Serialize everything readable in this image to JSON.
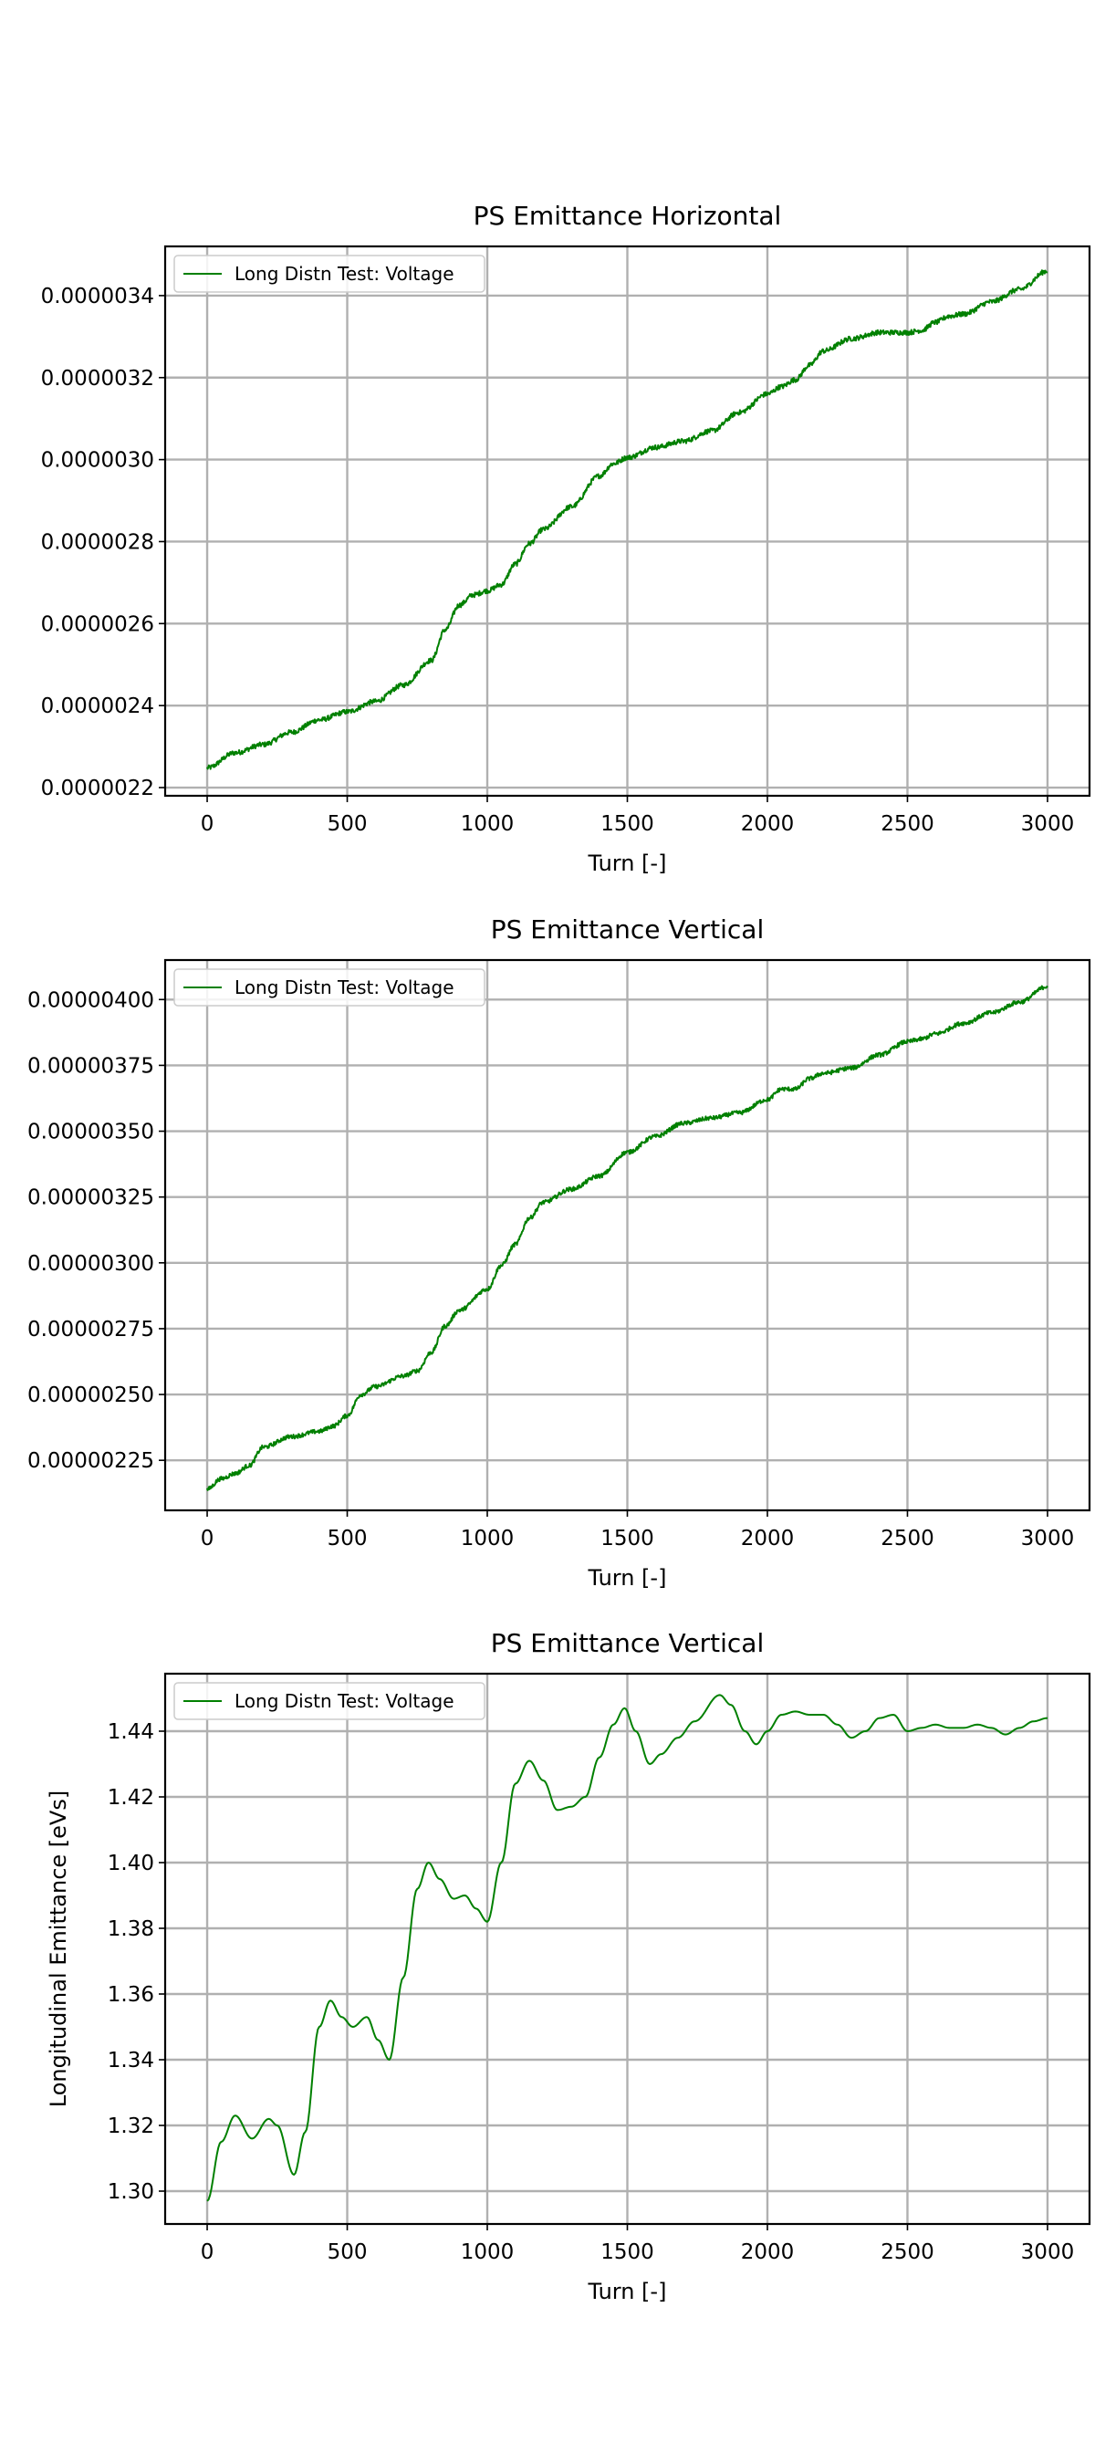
{
  "chart_data": [
    {
      "type": "line",
      "title": "PS Emittance Horizontal",
      "xlabel": "Turn [-]",
      "ylabel": "",
      "xlim": [
        -150,
        3150
      ],
      "ylim": [
        2.18e-06,
        3.52e-06
      ],
      "xticks": [
        0,
        500,
        1000,
        1500,
        2000,
        2500,
        3000
      ],
      "xtick_labels": [
        "0",
        "500",
        "1000",
        "1500",
        "2000",
        "2500",
        "3000"
      ],
      "yticks": [
        2.2e-06,
        2.4e-06,
        2.6e-06,
        2.8e-06,
        3e-06,
        3.2e-06,
        3.4e-06
      ],
      "ytick_labels": [
        "0.0000022",
        "0.0000024",
        "0.0000026",
        "0.0000028",
        "0.0000030",
        "0.0000032",
        "0.0000034"
      ],
      "grid": true,
      "legend_position": "top-left",
      "color": "#008000",
      "noise": 6e-09,
      "series": [
        {
          "name": "Long Distn Test: Voltage",
          "x": [
            0,
            100,
            200,
            300,
            400,
            500,
            600,
            700,
            800,
            850,
            900,
            950,
            1000,
            1050,
            1100,
            1150,
            1200,
            1300,
            1400,
            1450,
            1500,
            1600,
            1700,
            1800,
            1900,
            2000,
            2050,
            2100,
            2150,
            2200,
            2300,
            2400,
            2500,
            2550,
            2600,
            2650,
            2700,
            2800,
            2900,
            3000
          ],
          "y": [
            2.248e-06,
            2.285e-06,
            2.305e-06,
            2.335e-06,
            2.365e-06,
            2.385e-06,
            2.41e-06,
            2.45e-06,
            2.51e-06,
            2.585e-06,
            2.645e-06,
            2.67e-06,
            2.68e-06,
            2.695e-06,
            2.745e-06,
            2.795e-06,
            2.83e-06,
            2.885e-06,
            2.96e-06,
            2.99e-06,
            3.005e-06,
            3.03e-06,
            3.045e-06,
            3.07e-06,
            3.115e-06,
            3.16e-06,
            3.178e-06,
            3.195e-06,
            3.23e-06,
            3.265e-06,
            3.295e-06,
            3.31e-06,
            3.31e-06,
            3.315e-06,
            3.335e-06,
            3.35e-06,
            3.355e-06,
            3.385e-06,
            3.415e-06,
            3.46e-06
          ]
        }
      ]
    },
    {
      "type": "line",
      "title": "PS Emittance Vertical",
      "xlabel": "Turn [-]",
      "ylabel": "",
      "xlim": [
        -150,
        3150
      ],
      "ylim": [
        2.06e-06,
        4.15e-06
      ],
      "xticks": [
        0,
        500,
        1000,
        1500,
        2000,
        2500,
        3000
      ],
      "xtick_labels": [
        "0",
        "500",
        "1000",
        "1500",
        "2000",
        "2500",
        "3000"
      ],
      "yticks": [
        2.25e-06,
        2.5e-06,
        2.75e-06,
        3e-06,
        3.25e-06,
        3.5e-06,
        3.75e-06,
        4e-06
      ],
      "ytick_labels": [
        "0.00000225",
        "0.00000250",
        "0.00000275",
        "0.00000300",
        "0.00000325",
        "0.00000350",
        "0.00000375",
        "0.00000400"
      ],
      "grid": true,
      "legend_position": "top-left",
      "color": "#008000",
      "noise": 8e-09,
      "series": [
        {
          "name": "Long Distn Test: Voltage",
          "x": [
            0,
            50,
            100,
            150,
            200,
            300,
            400,
            450,
            500,
            550,
            600,
            700,
            750,
            800,
            850,
            900,
            1000,
            1050,
            1100,
            1150,
            1200,
            1300,
            1400,
            1500,
            1600,
            1700,
            1800,
            1900,
            2000,
            2050,
            2100,
            2150,
            2200,
            2300,
            2400,
            2500,
            2550,
            2600,
            2700,
            2800,
            2900,
            3000
          ],
          "y": [
            2.14e-06,
            2.18e-06,
            2.2e-06,
            2.23e-06,
            2.3e-06,
            2.34e-06,
            2.36e-06,
            2.38e-06,
            2.42e-06,
            2.5e-06,
            2.53e-06,
            2.57e-06,
            2.59e-06,
            2.66e-06,
            2.76e-06,
            2.82e-06,
            2.9e-06,
            2.99e-06,
            3.07e-06,
            3.17e-06,
            3.23e-06,
            3.28e-06,
            3.33e-06,
            3.42e-06,
            3.48e-06,
            3.53e-06,
            3.55e-06,
            3.57e-06,
            3.62e-06,
            3.66e-06,
            3.66e-06,
            3.7e-06,
            3.72e-06,
            3.74e-06,
            3.79e-06,
            3.84e-06,
            3.85e-06,
            3.87e-06,
            3.91e-06,
            3.95e-06,
            3.99e-06,
            4.05e-06
          ]
        }
      ]
    },
    {
      "type": "line",
      "title": "PS Emittance Vertical",
      "xlabel": "Turn [-]",
      "ylabel": "Longitudinal Emittance [eVs]",
      "xlim": [
        -150,
        3150
      ],
      "ylim": [
        1.29,
        1.4575
      ],
      "xticks": [
        0,
        500,
        1000,
        1500,
        2000,
        2500,
        3000
      ],
      "xtick_labels": [
        "0",
        "500",
        "1000",
        "1500",
        "2000",
        "2500",
        "3000"
      ],
      "yticks": [
        1.3,
        1.32,
        1.34,
        1.36,
        1.38,
        1.4,
        1.42,
        1.44
      ],
      "ytick_labels": [
        "1.30",
        "1.32",
        "1.34",
        "1.36",
        "1.38",
        "1.40",
        "1.42",
        "1.44"
      ],
      "grid": true,
      "legend_position": "top-left",
      "color": "#008000",
      "noise": 0,
      "series": [
        {
          "name": "Long Distn Test: Voltage",
          "x": [
            0,
            50,
            100,
            160,
            220,
            250,
            310,
            350,
            400,
            440,
            480,
            520,
            570,
            610,
            650,
            700,
            750,
            790,
            830,
            880,
            920,
            960,
            1000,
            1050,
            1100,
            1150,
            1200,
            1250,
            1300,
            1350,
            1400,
            1450,
            1490,
            1530,
            1580,
            1620,
            1680,
            1740,
            1830,
            1870,
            1920,
            1960,
            2000,
            2050,
            2100,
            2150,
            2200,
            2250,
            2300,
            2350,
            2400,
            2450,
            2500,
            2550,
            2600,
            2650,
            2700,
            2750,
            2800,
            2850,
            2900,
            2950,
            3000
          ],
          "y": [
            1.297,
            1.315,
            1.323,
            1.316,
            1.322,
            1.32,
            1.305,
            1.318,
            1.35,
            1.358,
            1.353,
            1.35,
            1.353,
            1.346,
            1.34,
            1.365,
            1.392,
            1.4,
            1.395,
            1.389,
            1.39,
            1.386,
            1.382,
            1.4,
            1.424,
            1.431,
            1.425,
            1.416,
            1.417,
            1.42,
            1.432,
            1.442,
            1.447,
            1.44,
            1.43,
            1.433,
            1.438,
            1.443,
            1.451,
            1.448,
            1.44,
            1.436,
            1.44,
            1.445,
            1.446,
            1.445,
            1.445,
            1.442,
            1.438,
            1.44,
            1.444,
            1.445,
            1.44,
            1.441,
            1.442,
            1.441,
            1.441,
            1.442,
            1.441,
            1.439,
            1.441,
            1.443,
            1.444
          ]
        }
      ]
    }
  ]
}
